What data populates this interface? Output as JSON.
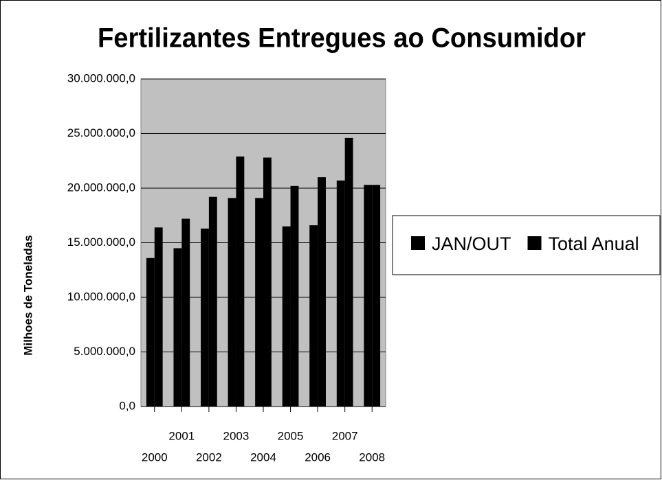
{
  "chart_data": {
    "type": "bar",
    "title": "Fertilizantes Entregues ao Consumidor",
    "y_label": "Milhoes de Toneladas",
    "categories": [
      "2000",
      "2001",
      "2002",
      "2003",
      "2004",
      "2005",
      "2006",
      "2007",
      "2008"
    ],
    "series": [
      {
        "name": "JAN/OUT",
        "color": "#000000",
        "values": [
          13600000,
          14500000,
          16300000,
          19100000,
          19100000,
          16500000,
          16600000,
          20700000,
          20300000
        ]
      },
      {
        "name": "Total Anual",
        "color": "#000000",
        "values": [
          16400000,
          17200000,
          19200000,
          22900000,
          22800000,
          20200000,
          21000000,
          24600000,
          20300000
        ]
      }
    ],
    "ylim": [
      0,
      30000000
    ],
    "yticks": [
      {
        "value": 0,
        "label": "0,0"
      },
      {
        "value": 5000000,
        "label": "5.000.000,0"
      },
      {
        "value": 10000000,
        "label": "10.000.000,0"
      },
      {
        "value": 15000000,
        "label": "15.000.000,0"
      },
      {
        "value": 20000000,
        "label": "20.000.000,0"
      },
      {
        "value": 25000000,
        "label": "25.000.000,0"
      },
      {
        "value": 30000000,
        "label": "30.000.000,0"
      }
    ],
    "grid": true,
    "legend": "right",
    "plot_background": "#c0c0c0"
  }
}
